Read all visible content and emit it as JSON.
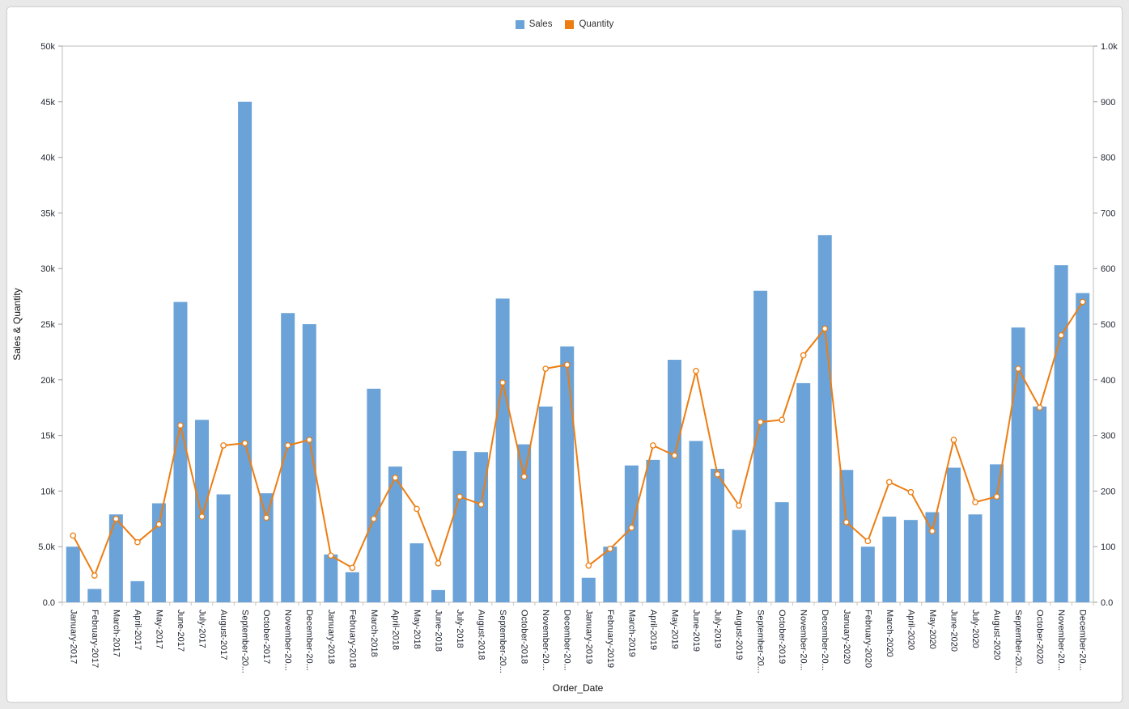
{
  "colors": {
    "page_background": "#e9e9e9",
    "panel_background": "#ffffff",
    "plot_border": "#bdbdbd",
    "tick_label": "#1f2430"
  },
  "chart_data": {
    "type": "bar+line combo",
    "title": "",
    "xlabel": "Order_Date",
    "ylabel": "Sales & Quantity",
    "grid": false,
    "legend_position": "top-center",
    "categories": [
      "January-2017",
      "February-2017",
      "March-2017",
      "April-2017",
      "May-2017",
      "June-2017",
      "July-2017",
      "August-2017",
      "September-20...",
      "October-2017",
      "November-20...",
      "December-20...",
      "January-2018",
      "February-2018",
      "March-2018",
      "April-2018",
      "May-2018",
      "June-2018",
      "July-2018",
      "August-2018",
      "September-20...",
      "October-2018",
      "November-20...",
      "December-20...",
      "January-2019",
      "February-2019",
      "March-2019",
      "April-2019",
      "May-2019",
      "June-2019",
      "July-2019",
      "August-2019",
      "September-20...",
      "October-2019",
      "November-20...",
      "December-20...",
      "January-2020",
      "February-2020",
      "March-2020",
      "April-2020",
      "May-2020",
      "June-2020",
      "July-2020",
      "August-2020",
      "September-20...",
      "October-2020",
      "November-20...",
      "December-20..."
    ],
    "series": [
      {
        "name": "Sales",
        "type": "bar",
        "axis": "left",
        "color": "#6ba3d8",
        "values": [
          5000,
          1200,
          7900,
          1900,
          8900,
          27000,
          16400,
          9700,
          45000,
          9800,
          26000,
          25000,
          4300,
          2700,
          19200,
          12200,
          5300,
          1100,
          13600,
          13500,
          27300,
          14200,
          17600,
          23000,
          2200,
          5000,
          12300,
          12800,
          21800,
          14500,
          12000,
          6500,
          28000,
          9000,
          19700,
          33000,
          11900,
          5000,
          7700,
          7400,
          8100,
          12100,
          7900,
          12400,
          24700,
          17600,
          30300,
          27800
        ]
      },
      {
        "name": "Quantity",
        "type": "line",
        "axis": "right",
        "color": "#ed7d11",
        "marker": "open-circle",
        "values": [
          120,
          48,
          150,
          108,
          140,
          318,
          154,
          282,
          286,
          152,
          282,
          292,
          84,
          62,
          150,
          224,
          168,
          70,
          190,
          176,
          395,
          226,
          420,
          427,
          66,
          96,
          134,
          282,
          264,
          416,
          230,
          174,
          324,
          328,
          444,
          492,
          144,
          110,
          216,
          198,
          128,
          292,
          180,
          190,
          420,
          350,
          480,
          540
        ]
      }
    ],
    "left_axis": {
      "min": 0,
      "max": 50000,
      "tick_labels": [
        "0.0",
        "5.0k",
        "10k",
        "15k",
        "20k",
        "25k",
        "30k",
        "35k",
        "40k",
        "45k",
        "50k"
      ]
    },
    "right_axis": {
      "min": 0,
      "max": 1000,
      "tick_labels": [
        "0.0",
        "100",
        "200",
        "300",
        "400",
        "500",
        "600",
        "700",
        "800",
        "900",
        "1.0k"
      ]
    }
  }
}
